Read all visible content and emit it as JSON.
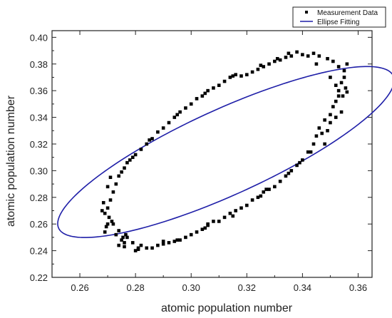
{
  "chart_data": {
    "type": "scatter",
    "title": "",
    "xlabel": "atomic population number",
    "ylabel": "atomic population number",
    "xlim": [
      0.25,
      0.365
    ],
    "ylim": [
      0.22,
      0.405
    ],
    "xticks": [
      0.26,
      0.28,
      0.3,
      0.32,
      0.34,
      0.36
    ],
    "xtick_labels": [
      "0.26",
      "0.28",
      "0.30",
      "0.32",
      "0.34",
      "0.36"
    ],
    "yticks": [
      0.22,
      0.24,
      0.26,
      0.28,
      0.3,
      0.32,
      0.34,
      0.36,
      0.38,
      0.4
    ],
    "ytick_labels": [
      "0.22",
      "0.24",
      "0.26",
      "0.28",
      "0.30",
      "0.32",
      "0.34",
      "0.36",
      "0.38",
      "0.40"
    ],
    "grid": false,
    "legend_position": "top-right",
    "colors": {
      "points": "#000000",
      "fit": "#1f1fa8",
      "axis": "#222222"
    },
    "series": [
      {
        "name": "Measurement Data",
        "kind": "scatter",
        "marker": "square",
        "points": [
          [
            0.268,
            0.27
          ],
          [
            0.2685,
            0.276
          ],
          [
            0.27,
            0.288
          ],
          [
            0.271,
            0.295
          ],
          [
            0.2705,
            0.265
          ],
          [
            0.2695,
            0.258
          ],
          [
            0.269,
            0.254
          ],
          [
            0.2715,
            0.262
          ],
          [
            0.273,
            0.252
          ],
          [
            0.274,
            0.244
          ],
          [
            0.275,
            0.248
          ],
          [
            0.276,
            0.246
          ],
          [
            0.277,
            0.25
          ],
          [
            0.279,
            0.246
          ],
          [
            0.28,
            0.24
          ],
          [
            0.281,
            0.242
          ],
          [
            0.282,
            0.244
          ],
          [
            0.284,
            0.242
          ],
          [
            0.286,
            0.242
          ],
          [
            0.288,
            0.244
          ],
          [
            0.29,
            0.245
          ],
          [
            0.292,
            0.246
          ],
          [
            0.294,
            0.247
          ],
          [
            0.296,
            0.248
          ],
          [
            0.298,
            0.25
          ],
          [
            0.3,
            0.252
          ],
          [
            0.302,
            0.254
          ],
          [
            0.304,
            0.256
          ],
          [
            0.306,
            0.259
          ],
          [
            0.308,
            0.262
          ],
          [
            0.31,
            0.262
          ],
          [
            0.312,
            0.265
          ],
          [
            0.314,
            0.268
          ],
          [
            0.316,
            0.27
          ],
          [
            0.318,
            0.272
          ],
          [
            0.32,
            0.274
          ],
          [
            0.322,
            0.278
          ],
          [
            0.324,
            0.28
          ],
          [
            0.326,
            0.284
          ],
          [
            0.328,
            0.286
          ],
          [
            0.33,
            0.288
          ],
          [
            0.332,
            0.292
          ],
          [
            0.334,
            0.296
          ],
          [
            0.336,
            0.3
          ],
          [
            0.338,
            0.304
          ],
          [
            0.34,
            0.308
          ],
          [
            0.342,
            0.314
          ],
          [
            0.344,
            0.32
          ],
          [
            0.345,
            0.326
          ],
          [
            0.346,
            0.332
          ],
          [
            0.348,
            0.338
          ],
          [
            0.349,
            0.33
          ],
          [
            0.35,
            0.342
          ],
          [
            0.351,
            0.348
          ],
          [
            0.352,
            0.352
          ],
          [
            0.353,
            0.36
          ],
          [
            0.354,
            0.366
          ],
          [
            0.3545,
            0.356
          ],
          [
            0.355,
            0.37
          ],
          [
            0.3555,
            0.362
          ],
          [
            0.356,
            0.38
          ],
          [
            0.355,
            0.375
          ],
          [
            0.353,
            0.378
          ],
          [
            0.351,
            0.382
          ],
          [
            0.349,
            0.384
          ],
          [
            0.346,
            0.386
          ],
          [
            0.344,
            0.388
          ],
          [
            0.342,
            0.386
          ],
          [
            0.34,
            0.387
          ],
          [
            0.338,
            0.389
          ],
          [
            0.336,
            0.386
          ],
          [
            0.334,
            0.385
          ],
          [
            0.332,
            0.383
          ],
          [
            0.33,
            0.382
          ],
          [
            0.328,
            0.38
          ],
          [
            0.326,
            0.378
          ],
          [
            0.324,
            0.376
          ],
          [
            0.322,
            0.374
          ],
          [
            0.32,
            0.372
          ],
          [
            0.318,
            0.371
          ],
          [
            0.316,
            0.372
          ],
          [
            0.314,
            0.37
          ],
          [
            0.312,
            0.367
          ],
          [
            0.31,
            0.364
          ],
          [
            0.308,
            0.362
          ],
          [
            0.306,
            0.36
          ],
          [
            0.304,
            0.356
          ],
          [
            0.302,
            0.354
          ],
          [
            0.3,
            0.35
          ],
          [
            0.298,
            0.347
          ],
          [
            0.296,
            0.344
          ],
          [
            0.294,
            0.34
          ],
          [
            0.292,
            0.336
          ],
          [
            0.29,
            0.332
          ],
          [
            0.288,
            0.329
          ],
          [
            0.286,
            0.324
          ],
          [
            0.284,
            0.32
          ],
          [
            0.282,
            0.316
          ],
          [
            0.28,
            0.312
          ],
          [
            0.278,
            0.308
          ],
          [
            0.276,
            0.302
          ],
          [
            0.274,
            0.296
          ],
          [
            0.273,
            0.29
          ],
          [
            0.272,
            0.284
          ],
          [
            0.271,
            0.278
          ],
          [
            0.27,
            0.272
          ],
          [
            0.272,
            0.26
          ],
          [
            0.274,
            0.255
          ],
          [
            0.2755,
            0.25
          ],
          [
            0.2765,
            0.252
          ],
          [
            0.29,
            0.247
          ],
          [
            0.295,
            0.248
          ],
          [
            0.305,
            0.257
          ],
          [
            0.315,
            0.266
          ],
          [
            0.325,
            0.281
          ],
          [
            0.335,
            0.298
          ],
          [
            0.343,
            0.314
          ],
          [
            0.347,
            0.328
          ],
          [
            0.35,
            0.336
          ],
          [
            0.352,
            0.34
          ],
          [
            0.354,
            0.344
          ],
          [
            0.353,
            0.356
          ],
          [
            0.352,
            0.364
          ],
          [
            0.35,
            0.37
          ],
          [
            0.345,
            0.38
          ],
          [
            0.335,
            0.388
          ],
          [
            0.331,
            0.384
          ],
          [
            0.325,
            0.379
          ],
          [
            0.315,
            0.371
          ],
          [
            0.305,
            0.358
          ],
          [
            0.295,
            0.342
          ],
          [
            0.285,
            0.323
          ],
          [
            0.279,
            0.31
          ],
          [
            0.277,
            0.306
          ],
          [
            0.275,
            0.299
          ],
          [
            0.269,
            0.268
          ],
          [
            0.27,
            0.26
          ],
          [
            0.276,
            0.243
          ],
          [
            0.281,
            0.241
          ],
          [
            0.306,
            0.26
          ],
          [
            0.327,
            0.286
          ],
          [
            0.339,
            0.306
          ],
          [
            0.348,
            0.32
          ],
          [
            0.356,
            0.359
          ]
        ]
      },
      {
        "name": "Ellipse Fitting",
        "kind": "line",
        "ellipse": {
          "center": [
            0.3125,
            0.314
          ],
          "semi_major": 0.0845,
          "semi_minor": 0.025,
          "angle_deg": 47
        }
      }
    ]
  }
}
